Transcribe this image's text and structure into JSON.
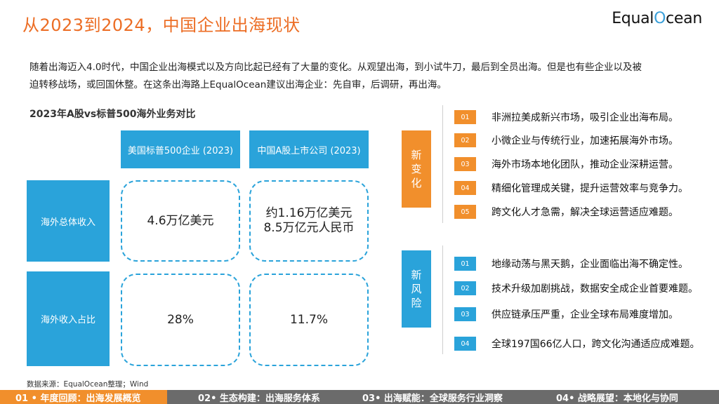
{
  "header": {
    "title": "从2023到2024，中国企业出海现状",
    "logo_text_before": "Equal",
    "logo_text_o": "O",
    "logo_text_after": "cean"
  },
  "intro": {
    "line1": "随着出海迈入4.0时代，中国企业出海模式以及方向比起已经有了大量的变化。从观望出海，到小试牛刀，最后到全员出海。但是也有些企业以及被",
    "line2": "迫转移战场，或回国休整。在这条出海路上EqualOcean建议出海企业：先自审，后调研，再出海。"
  },
  "comparison": {
    "title": "2023年A股vs标普500海外业务对比",
    "columns": [
      "美国标普500企业 (2023)",
      "中国A股上市公司 (2023)"
    ],
    "rows": [
      {
        "label": "海外总体收入",
        "values": [
          "4.6万亿美元",
          "约1.16万亿美元\n8.5万亿元人民币"
        ]
      },
      {
        "label": "海外收入占比",
        "values": [
          "28%",
          "11.7%"
        ]
      }
    ],
    "source": "数据来源：EqualOcean整理；Wind"
  },
  "new_changes": {
    "label": "新\n变\n化",
    "items": [
      {
        "num": "01",
        "text": "非洲拉美成新兴市场，吸引企业出海布局。"
      },
      {
        "num": "02",
        "text": "小微企业与传统行业，加速拓展海外市场。"
      },
      {
        "num": "03",
        "text": "海外市场本地化团队，推动企业深耕运营。"
      },
      {
        "num": "04",
        "text": "精细化管理成关键，提升运营效率与竞争力。"
      },
      {
        "num": "05",
        "text": "跨文化人才急需，解决全球运营适应难题。"
      }
    ]
  },
  "new_risks": {
    "label": "新\n风\n险",
    "items": [
      {
        "num": "01",
        "text": "地缘动荡与黑天鹅，企业面临出海不确定性。"
      },
      {
        "num": "02",
        "text": "技术升级加剧挑战，数据安全成企业首要难题。"
      },
      {
        "num": "03",
        "text": "供应链承压严重，企业全球布局难度增加。"
      },
      {
        "num": "04",
        "text": "全球197国66亿人口，跨文化沟通适应成难题。"
      }
    ]
  },
  "footer": {
    "tabs": [
      "01 •  年度回顾：出海发展概览",
      "02• 生态构建：出海服务体系",
      "03• 出海赋能：全球服务行业洞察",
      "04• 战略展望：本地化与协同"
    ],
    "colors": {
      "active": "#f18f2c",
      "inactive": "#6b6b6b"
    }
  },
  "colors": {
    "accent_orange": "#f18f2c",
    "accent_blue": "#2aa3da",
    "title_orange": "#ec6d24"
  }
}
